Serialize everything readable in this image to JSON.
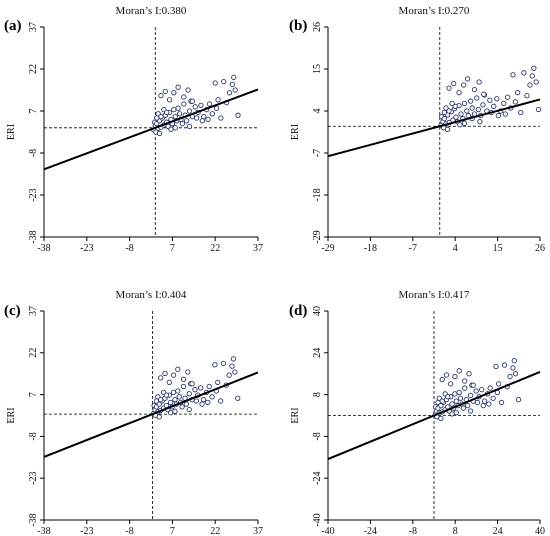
{
  "chart_data": [
    {
      "type": "scatter",
      "panel_label": "(a)",
      "title": "Moran’s I:0.380",
      "xlabel": "",
      "ylabel": "ERI",
      "xlim": [
        -38,
        37
      ],
      "ylim": [
        -38,
        37
      ],
      "xticks": [
        -38,
        -23,
        -8,
        7,
        22,
        37
      ],
      "yticks": [
        -38,
        -23,
        -8,
        7,
        22,
        37
      ],
      "mean_x": 1,
      "mean_y": 1,
      "slope": 0.38,
      "points": [
        [
          0.5,
          0.2
        ],
        [
          1.0,
          1.5
        ],
        [
          0.8,
          3.0
        ],
        [
          1.2,
          -0.5
        ],
        [
          1.5,
          2.5
        ],
        [
          2.0,
          0.8
        ],
        [
          2.5,
          3.5
        ],
        [
          3.0,
          1.2
        ],
        [
          3.5,
          4.5
        ],
        [
          4.0,
          2.0
        ],
        [
          4.5,
          5.5
        ],
        [
          5.0,
          3.0
        ],
        [
          5.5,
          1.5
        ],
        [
          6.0,
          6.5
        ],
        [
          6.5,
          4.0
        ],
        [
          7.0,
          2.5
        ],
        [
          7.5,
          7.5
        ],
        [
          8.0,
          5.0
        ],
        [
          8.5,
          3.5
        ],
        [
          9.0,
          8.0
        ],
        [
          9.5,
          6.0
        ],
        [
          10.0,
          4.0
        ],
        [
          11.0,
          9.5
        ],
        [
          11.5,
          5.5
        ],
        [
          12.0,
          3.5
        ],
        [
          13.0,
          7.0
        ],
        [
          13.5,
          10.5
        ],
        [
          14.0,
          5.0
        ],
        [
          15.0,
          8.5
        ],
        [
          15.5,
          4.5
        ],
        [
          16.0,
          6.5
        ],
        [
          17.0,
          9.0
        ],
        [
          17.5,
          3.5
        ],
        [
          18.0,
          5.0
        ],
        [
          19.0,
          7.5
        ],
        [
          19.5,
          4.0
        ],
        [
          20.0,
          9.5
        ],
        [
          21.0,
          6.0
        ],
        [
          22.0,
          17.0
        ],
        [
          22.5,
          8.0
        ],
        [
          23.0,
          11.0
        ],
        [
          24.0,
          4.5
        ],
        [
          25.0,
          17.5
        ],
        [
          26.0,
          10.0
        ],
        [
          27.0,
          13.5
        ],
        [
          28.0,
          16.5
        ],
        [
          28.5,
          19.0
        ],
        [
          29.0,
          14.5
        ],
        [
          30.0,
          5.5
        ],
        [
          3.0,
          12.5
        ],
        [
          4.5,
          14.0
        ],
        [
          6.0,
          11.0
        ],
        [
          7.5,
          13.5
        ],
        [
          9.0,
          15.5
        ],
        [
          11.0,
          12.0
        ],
        [
          12.5,
          14.5
        ],
        [
          14.0,
          10.5
        ],
        [
          2.0,
          6.0
        ],
        [
          3.0,
          5.0
        ],
        [
          4.0,
          7.5
        ],
        [
          5.0,
          6.5
        ],
        [
          1.5,
          4.5
        ],
        [
          2.5,
          -1.0
        ],
        [
          6.5,
          0.5
        ],
        [
          8.0,
          1.0
        ],
        [
          10.5,
          2.5
        ],
        [
          13.0,
          1.5
        ]
      ]
    },
    {
      "type": "scatter",
      "panel_label": "(b)",
      "title": "Moran’s I:0.270",
      "xlabel": "",
      "ylabel": "ERI",
      "xlim": [
        -29,
        26
      ],
      "ylim": [
        -29,
        26
      ],
      "xticks": [
        -29,
        -18,
        -7,
        4,
        15,
        26
      ],
      "yticks": [
        -29,
        -18,
        -7,
        4,
        15,
        26
      ],
      "mean_x": 0,
      "mean_y": 0,
      "slope": 0.27,
      "points": [
        [
          0.3,
          0.2
        ],
        [
          0.8,
          1.2
        ],
        [
          0.5,
          2.5
        ],
        [
          1.0,
          -0.4
        ],
        [
          1.2,
          2.0
        ],
        [
          1.6,
          0.6
        ],
        [
          2.0,
          3.0
        ],
        [
          2.5,
          1.0
        ],
        [
          3.0,
          3.8
        ],
        [
          3.4,
          1.6
        ],
        [
          3.8,
          4.6
        ],
        [
          4.2,
          2.4
        ],
        [
          4.6,
          1.2
        ],
        [
          5.0,
          5.4
        ],
        [
          5.5,
          3.2
        ],
        [
          6.0,
          2.0
        ],
        [
          6.4,
          6.0
        ],
        [
          7.0,
          4.0
        ],
        [
          7.4,
          2.8
        ],
        [
          8.0,
          6.6
        ],
        [
          8.4,
          4.8
        ],
        [
          9.0,
          3.2
        ],
        [
          9.6,
          7.4
        ],
        [
          10.0,
          4.4
        ],
        [
          10.6,
          2.8
        ],
        [
          11.2,
          5.6
        ],
        [
          11.6,
          8.2
        ],
        [
          12.2,
          4.0
        ],
        [
          13.0,
          6.8
        ],
        [
          13.4,
          3.6
        ],
        [
          14.0,
          5.2
        ],
        [
          14.8,
          7.2
        ],
        [
          15.2,
          2.8
        ],
        [
          15.8,
          4.0
        ],
        [
          16.6,
          6.0
        ],
        [
          17.0,
          3.2
        ],
        [
          17.6,
          7.6
        ],
        [
          18.4,
          4.8
        ],
        [
          19.0,
          13.5
        ],
        [
          19.6,
          6.4
        ],
        [
          20.2,
          8.8
        ],
        [
          21.0,
          3.6
        ],
        [
          21.8,
          14.0
        ],
        [
          22.6,
          8.0
        ],
        [
          23.4,
          10.8
        ],
        [
          24.0,
          13.2
        ],
        [
          24.4,
          15.2
        ],
        [
          25.0,
          11.6
        ],
        [
          25.6,
          4.4
        ],
        [
          2.4,
          10.0
        ],
        [
          3.6,
          11.2
        ],
        [
          5.0,
          8.8
        ],
        [
          6.2,
          10.8
        ],
        [
          7.2,
          12.4
        ],
        [
          9.0,
          9.6
        ],
        [
          10.2,
          11.6
        ],
        [
          11.4,
          8.4
        ],
        [
          1.6,
          4.8
        ],
        [
          2.4,
          4.0
        ],
        [
          3.2,
          6.0
        ],
        [
          4.0,
          5.2
        ],
        [
          1.2,
          3.6
        ],
        [
          2.0,
          -0.8
        ],
        [
          5.2,
          0.4
        ],
        [
          6.4,
          0.8
        ],
        [
          8.4,
          2.0
        ],
        [
          10.4,
          1.2
        ]
      ]
    },
    {
      "type": "scatter",
      "panel_label": "(c)",
      "title": "Moran’s I:0.404",
      "xlabel": "",
      "ylabel": "ERI",
      "xlim": [
        -38,
        37
      ],
      "ylim": [
        -38,
        37
      ],
      "xticks": [
        -38,
        -23,
        -8,
        7,
        22,
        37
      ],
      "yticks": [
        -38,
        -23,
        -8,
        7,
        22,
        37
      ],
      "mean_x": 0,
      "mean_y": 0,
      "slope": 0.404,
      "points": [
        [
          0.4,
          0.2
        ],
        [
          0.9,
          1.6
        ],
        [
          0.6,
          3.1
        ],
        [
          1.1,
          -0.5
        ],
        [
          1.4,
          2.6
        ],
        [
          1.9,
          0.8
        ],
        [
          2.4,
          3.6
        ],
        [
          2.9,
          1.3
        ],
        [
          3.4,
          4.7
        ],
        [
          3.9,
          2.1
        ],
        [
          4.4,
          5.7
        ],
        [
          4.9,
          3.1
        ],
        [
          5.4,
          1.6
        ],
        [
          5.9,
          6.8
        ],
        [
          6.4,
          4.2
        ],
        [
          6.9,
          2.6
        ],
        [
          7.4,
          7.8
        ],
        [
          7.9,
          5.2
        ],
        [
          8.4,
          3.6
        ],
        [
          8.9,
          8.3
        ],
        [
          9.4,
          6.2
        ],
        [
          9.9,
          4.2
        ],
        [
          10.9,
          9.9
        ],
        [
          11.4,
          5.7
        ],
        [
          11.9,
          3.6
        ],
        [
          12.9,
          7.3
        ],
        [
          13.4,
          10.9
        ],
        [
          13.9,
          5.2
        ],
        [
          14.9,
          8.8
        ],
        [
          15.4,
          4.7
        ],
        [
          15.9,
          6.8
        ],
        [
          16.9,
          9.4
        ],
        [
          17.4,
          3.6
        ],
        [
          17.9,
          5.2
        ],
        [
          18.9,
          7.8
        ],
        [
          19.4,
          4.2
        ],
        [
          19.9,
          9.9
        ],
        [
          20.9,
          6.2
        ],
        [
          21.9,
          17.7
        ],
        [
          22.4,
          8.3
        ],
        [
          22.9,
          11.4
        ],
        [
          23.9,
          4.7
        ],
        [
          24.9,
          18.2
        ],
        [
          25.9,
          10.4
        ],
        [
          26.9,
          14.0
        ],
        [
          27.9,
          17.2
        ],
        [
          28.4,
          19.8
        ],
        [
          28.9,
          15.1
        ],
        [
          29.9,
          5.7
        ],
        [
          2.9,
          13.0
        ],
        [
          4.4,
          14.6
        ],
        [
          5.9,
          11.4
        ],
        [
          7.4,
          14.0
        ],
        [
          8.9,
          16.1
        ],
        [
          10.9,
          12.5
        ],
        [
          12.4,
          15.1
        ],
        [
          13.9,
          10.9
        ],
        [
          1.9,
          6.2
        ],
        [
          2.9,
          5.2
        ],
        [
          3.9,
          7.8
        ],
        [
          4.9,
          6.8
        ],
        [
          1.4,
          4.7
        ],
        [
          2.4,
          -1.0
        ],
        [
          6.4,
          0.5
        ],
        [
          7.9,
          1.0
        ],
        [
          10.4,
          2.6
        ],
        [
          12.9,
          1.6
        ]
      ]
    },
    {
      "type": "scatter",
      "panel_label": "(d)",
      "title": "Moran’s I:0.417",
      "xlabel": "",
      "ylabel": "ERI",
      "xlim": [
        -40,
        40
      ],
      "ylim": [
        -40,
        40
      ],
      "xticks": [
        -40,
        -24,
        -8,
        8,
        24,
        40
      ],
      "yticks": [
        -40,
        -24,
        -8,
        8,
        24,
        40
      ],
      "mean_x": 0,
      "mean_y": 0,
      "slope": 0.417,
      "points": [
        [
          0.4,
          0.2
        ],
        [
          0.9,
          1.7
        ],
        [
          0.6,
          3.3
        ],
        [
          1.1,
          -0.5
        ],
        [
          1.5,
          2.8
        ],
        [
          2.0,
          0.9
        ],
        [
          2.6,
          3.8
        ],
        [
          3.1,
          1.4
        ],
        [
          3.6,
          5.0
        ],
        [
          4.2,
          2.2
        ],
        [
          4.7,
          6.1
        ],
        [
          5.2,
          3.3
        ],
        [
          5.8,
          1.7
        ],
        [
          6.3,
          7.2
        ],
        [
          6.8,
          4.4
        ],
        [
          7.4,
          2.8
        ],
        [
          7.9,
          8.3
        ],
        [
          8.4,
          5.5
        ],
        [
          9.0,
          3.8
        ],
        [
          9.5,
          8.8
        ],
        [
          10.0,
          6.6
        ],
        [
          10.6,
          4.4
        ],
        [
          11.6,
          10.5
        ],
        [
          12.2,
          6.1
        ],
        [
          12.7,
          3.8
        ],
        [
          13.8,
          7.7
        ],
        [
          14.3,
          11.6
        ],
        [
          14.8,
          5.5
        ],
        [
          15.9,
          9.4
        ],
        [
          16.4,
          5.0
        ],
        [
          17.0,
          7.2
        ],
        [
          18.0,
          9.9
        ],
        [
          18.6,
          3.8
        ],
        [
          19.1,
          5.5
        ],
        [
          20.2,
          8.3
        ],
        [
          20.7,
          4.4
        ],
        [
          21.2,
          10.5
        ],
        [
          22.3,
          6.6
        ],
        [
          23.4,
          18.8
        ],
        [
          23.9,
          8.8
        ],
        [
          24.4,
          12.1
        ],
        [
          25.5,
          5.0
        ],
        [
          26.6,
          19.3
        ],
        [
          27.6,
          11.0
        ],
        [
          28.7,
          14.9
        ],
        [
          29.8,
          18.2
        ],
        [
          30.3,
          21.0
        ],
        [
          30.8,
          16.0
        ],
        [
          31.9,
          6.1
        ],
        [
          3.1,
          13.8
        ],
        [
          4.7,
          15.5
        ],
        [
          6.3,
          12.1
        ],
        [
          7.9,
          14.9
        ],
        [
          9.5,
          17.1
        ],
        [
          11.6,
          13.2
        ],
        [
          13.2,
          16.0
        ],
        [
          14.8,
          11.6
        ],
        [
          2.0,
          6.6
        ],
        [
          3.1,
          5.5
        ],
        [
          4.2,
          8.3
        ],
        [
          5.2,
          7.2
        ],
        [
          1.5,
          5.0
        ],
        [
          2.6,
          -1.1
        ],
        [
          6.8,
          0.6
        ],
        [
          8.4,
          1.1
        ],
        [
          11.1,
          2.8
        ],
        [
          13.8,
          1.7
        ]
      ]
    }
  ]
}
